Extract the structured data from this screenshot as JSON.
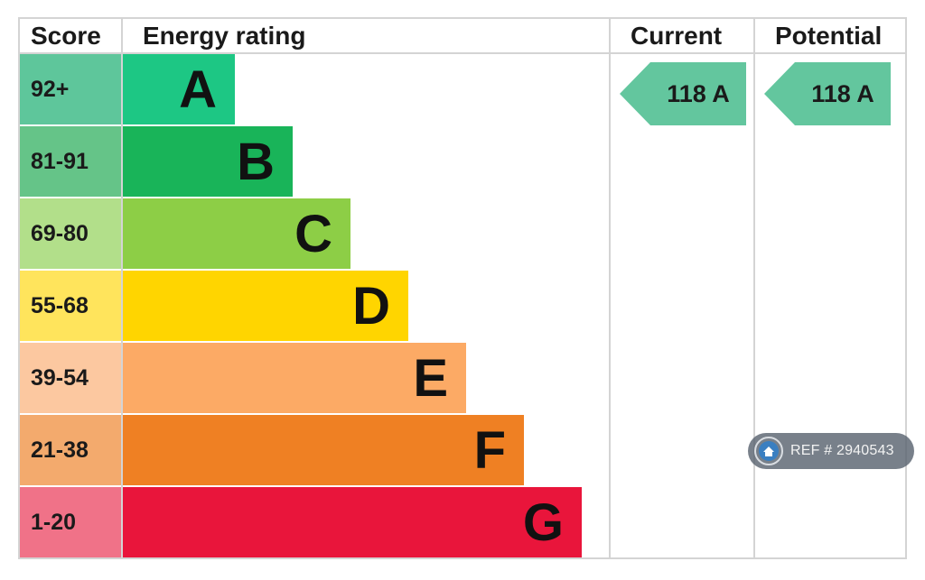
{
  "header": {
    "score": "Score",
    "energy_rating": "Energy rating",
    "current": "Current",
    "potential": "Potential"
  },
  "chart_data": {
    "type": "bar",
    "title": "",
    "categories": [
      "A",
      "B",
      "C",
      "D",
      "E",
      "F",
      "G"
    ],
    "bands": [
      {
        "letter": "A",
        "range": "92+",
        "color": "#1dc784",
        "score_color": "#5ec69b"
      },
      {
        "letter": "B",
        "range": "81-91",
        "color": "#19b459",
        "score_color": "#65c488"
      },
      {
        "letter": "C",
        "range": "69-80",
        "color": "#8dce46",
        "score_color": "#b2df8a"
      },
      {
        "letter": "D",
        "range": "55-68",
        "color": "#ffd500",
        "score_color": "#ffe45c"
      },
      {
        "letter": "E",
        "range": "39-54",
        "color": "#fcaa65",
        "score_color": "#fcc8a0"
      },
      {
        "letter": "F",
        "range": "21-38",
        "color": "#ef8023",
        "score_color": "#f3aa6d"
      },
      {
        "letter": "G",
        "range": "1-20",
        "color": "#e9153b",
        "score_color": "#f07288"
      }
    ],
    "current": {
      "value": 118,
      "band": "A",
      "label": "118 A",
      "color": "#63c69e"
    },
    "potential": {
      "value": 118,
      "band": "A",
      "label": "118 A",
      "color": "#63c69e"
    }
  },
  "watermark": {
    "text": "REF # 2940543",
    "icon": "home-icon"
  }
}
